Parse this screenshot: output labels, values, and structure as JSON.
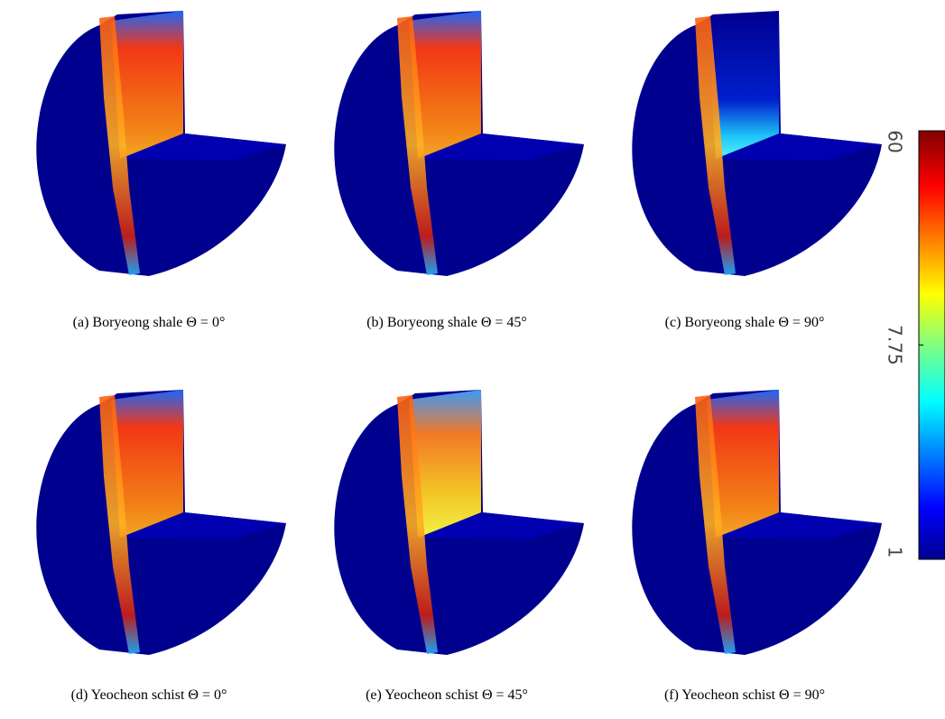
{
  "captions": [
    "(a) Boryeong shale Θ = 0°",
    "(b) Boryeong shale Θ = 45°",
    "(c) Boryeong shale Θ = 90°",
    "(d) Yeocheon schist Θ = 0°",
    "(e) Yeocheon schist Θ = 45°",
    "(f) Yeocheon schist Θ = 90°"
  ],
  "colorbar": {
    "lim": [
      1,
      60
    ],
    "ticks": [
      1,
      7.75,
      60
    ],
    "scale": "log"
  }
}
